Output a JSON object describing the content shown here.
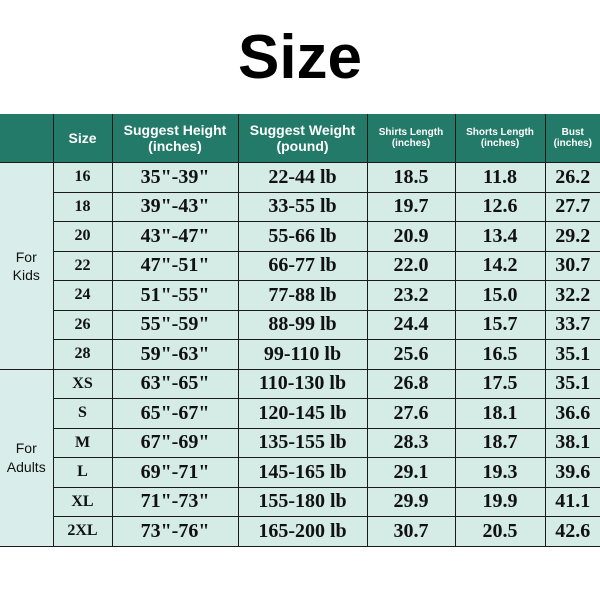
{
  "title": "Size",
  "colors": {
    "header": "#237a68",
    "cell": "#d4ebe6"
  },
  "headers": {
    "size": "Size",
    "height": [
      "Suggest Height",
      "(inches)"
    ],
    "weight": [
      "Suggest Weight",
      "(pound)"
    ],
    "shirts": [
      "Shirts Length",
      "(inches)"
    ],
    "shorts": [
      "Shorts Length",
      "(inches)"
    ],
    "bust": [
      "Bust",
      "(inches)"
    ]
  },
  "groups": {
    "kids": [
      "For",
      "Kids"
    ],
    "adults": [
      "For",
      "Adults"
    ]
  },
  "rows": [
    [
      "16",
      "35\"-39\"",
      "22-44 lb",
      "18.5",
      "11.8",
      "26.2"
    ],
    [
      "18",
      "39\"-43\"",
      "33-55 lb",
      "19.7",
      "12.6",
      "27.7"
    ],
    [
      "20",
      "43\"-47\"",
      "55-66 lb",
      "20.9",
      "13.4",
      "29.2"
    ],
    [
      "22",
      "47\"-51\"",
      "66-77 lb",
      "22.0",
      "14.2",
      "30.7"
    ],
    [
      "24",
      "51\"-55\"",
      "77-88 lb",
      "23.2",
      "15.0",
      "32.2"
    ],
    [
      "26",
      "55\"-59\"",
      "88-99 lb",
      "24.4",
      "15.7",
      "33.7"
    ],
    [
      "28",
      "59\"-63\"",
      "99-110 lb",
      "25.6",
      "16.5",
      "35.1"
    ],
    [
      "XS",
      "63\"-65\"",
      "110-130 lb",
      "26.8",
      "17.5",
      "35.1"
    ],
    [
      "S",
      "65\"-67\"",
      "120-145 lb",
      "27.6",
      "18.1",
      "36.6"
    ],
    [
      "M",
      "67\"-69\"",
      "135-155 lb",
      "28.3",
      "18.7",
      "38.1"
    ],
    [
      "L",
      "69\"-71\"",
      "145-165 lb",
      "29.1",
      "19.3",
      "39.6"
    ],
    [
      "XL",
      "71\"-73\"",
      "155-180 lb",
      "29.9",
      "19.9",
      "41.1"
    ],
    [
      "2XL",
      "73\"-76\"",
      "165-200 lb",
      "30.7",
      "20.5",
      "42.6"
    ]
  ]
}
